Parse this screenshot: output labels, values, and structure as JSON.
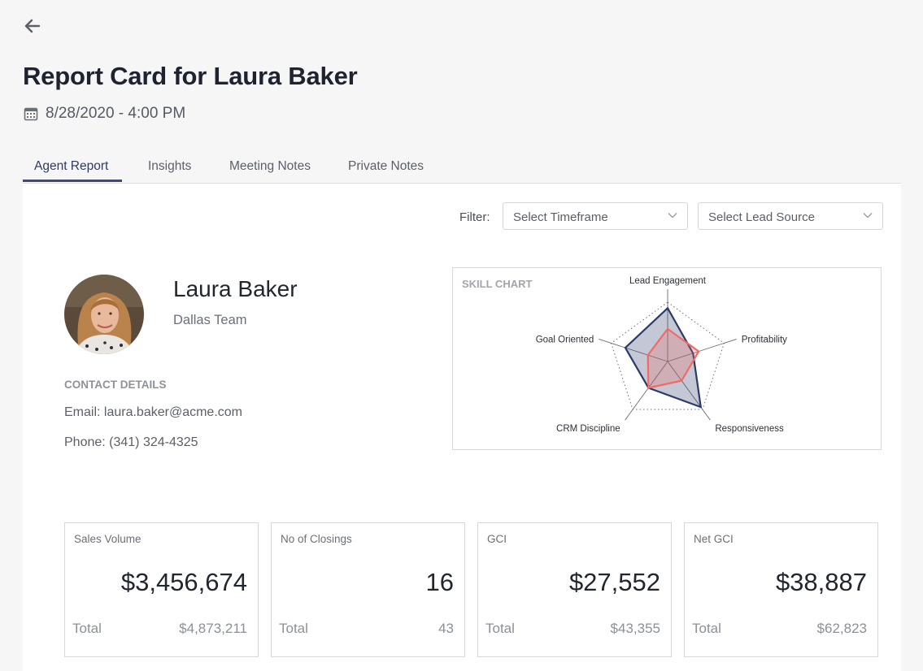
{
  "header": {
    "title": "Report Card for Laura Baker",
    "datetime": "8/28/2020 - 4:00 PM"
  },
  "tabs": [
    {
      "label": "Agent Report",
      "active": true
    },
    {
      "label": "Insights",
      "active": false
    },
    {
      "label": "Meeting Notes",
      "active": false
    },
    {
      "label": "Private Notes",
      "active": false
    }
  ],
  "filter": {
    "label": "Filter:",
    "timeframe_placeholder": "Select Timeframe",
    "lead_source_placeholder": "Select Lead Source"
  },
  "agent": {
    "name": "Laura Baker",
    "team": "Dallas Team",
    "contact_heading": "CONTACT DETAILS",
    "email": "Email: laura.baker@acme.com",
    "phone": "Phone: (341) 324-4325"
  },
  "skill_chart": {
    "title": "SKILL CHART",
    "axes": [
      "Lead Engagement",
      "Profitability",
      "Responsiveness",
      "CRM Discipline",
      "Goal Oriented"
    ],
    "series": [
      {
        "values": [
          0.9,
          0.45,
          0.95,
          0.55,
          0.75
        ],
        "color": "#2b3a66",
        "fill": "#2b3a66"
      },
      {
        "values": [
          0.55,
          0.55,
          0.4,
          0.55,
          0.35
        ],
        "color": "#f06b67",
        "fill": "#f06b67"
      }
    ]
  },
  "metrics": [
    {
      "label": "Sales Volume",
      "value": "$3,456,674",
      "total_label": "Total",
      "total_value": "$4,873,211"
    },
    {
      "label": "No of Closings",
      "value": "16",
      "total_label": "Total",
      "total_value": "43"
    },
    {
      "label": "GCI",
      "value": "$27,552",
      "total_label": "Total",
      "total_value": "$43,355"
    },
    {
      "label": "Net GCI",
      "value": "$38,887",
      "total_label": "Total",
      "total_value": "$62,823"
    }
  ],
  "colors": {
    "accent": "#3a4a7c",
    "series_primary": "#2b3a66",
    "series_secondary": "#f06b67"
  }
}
